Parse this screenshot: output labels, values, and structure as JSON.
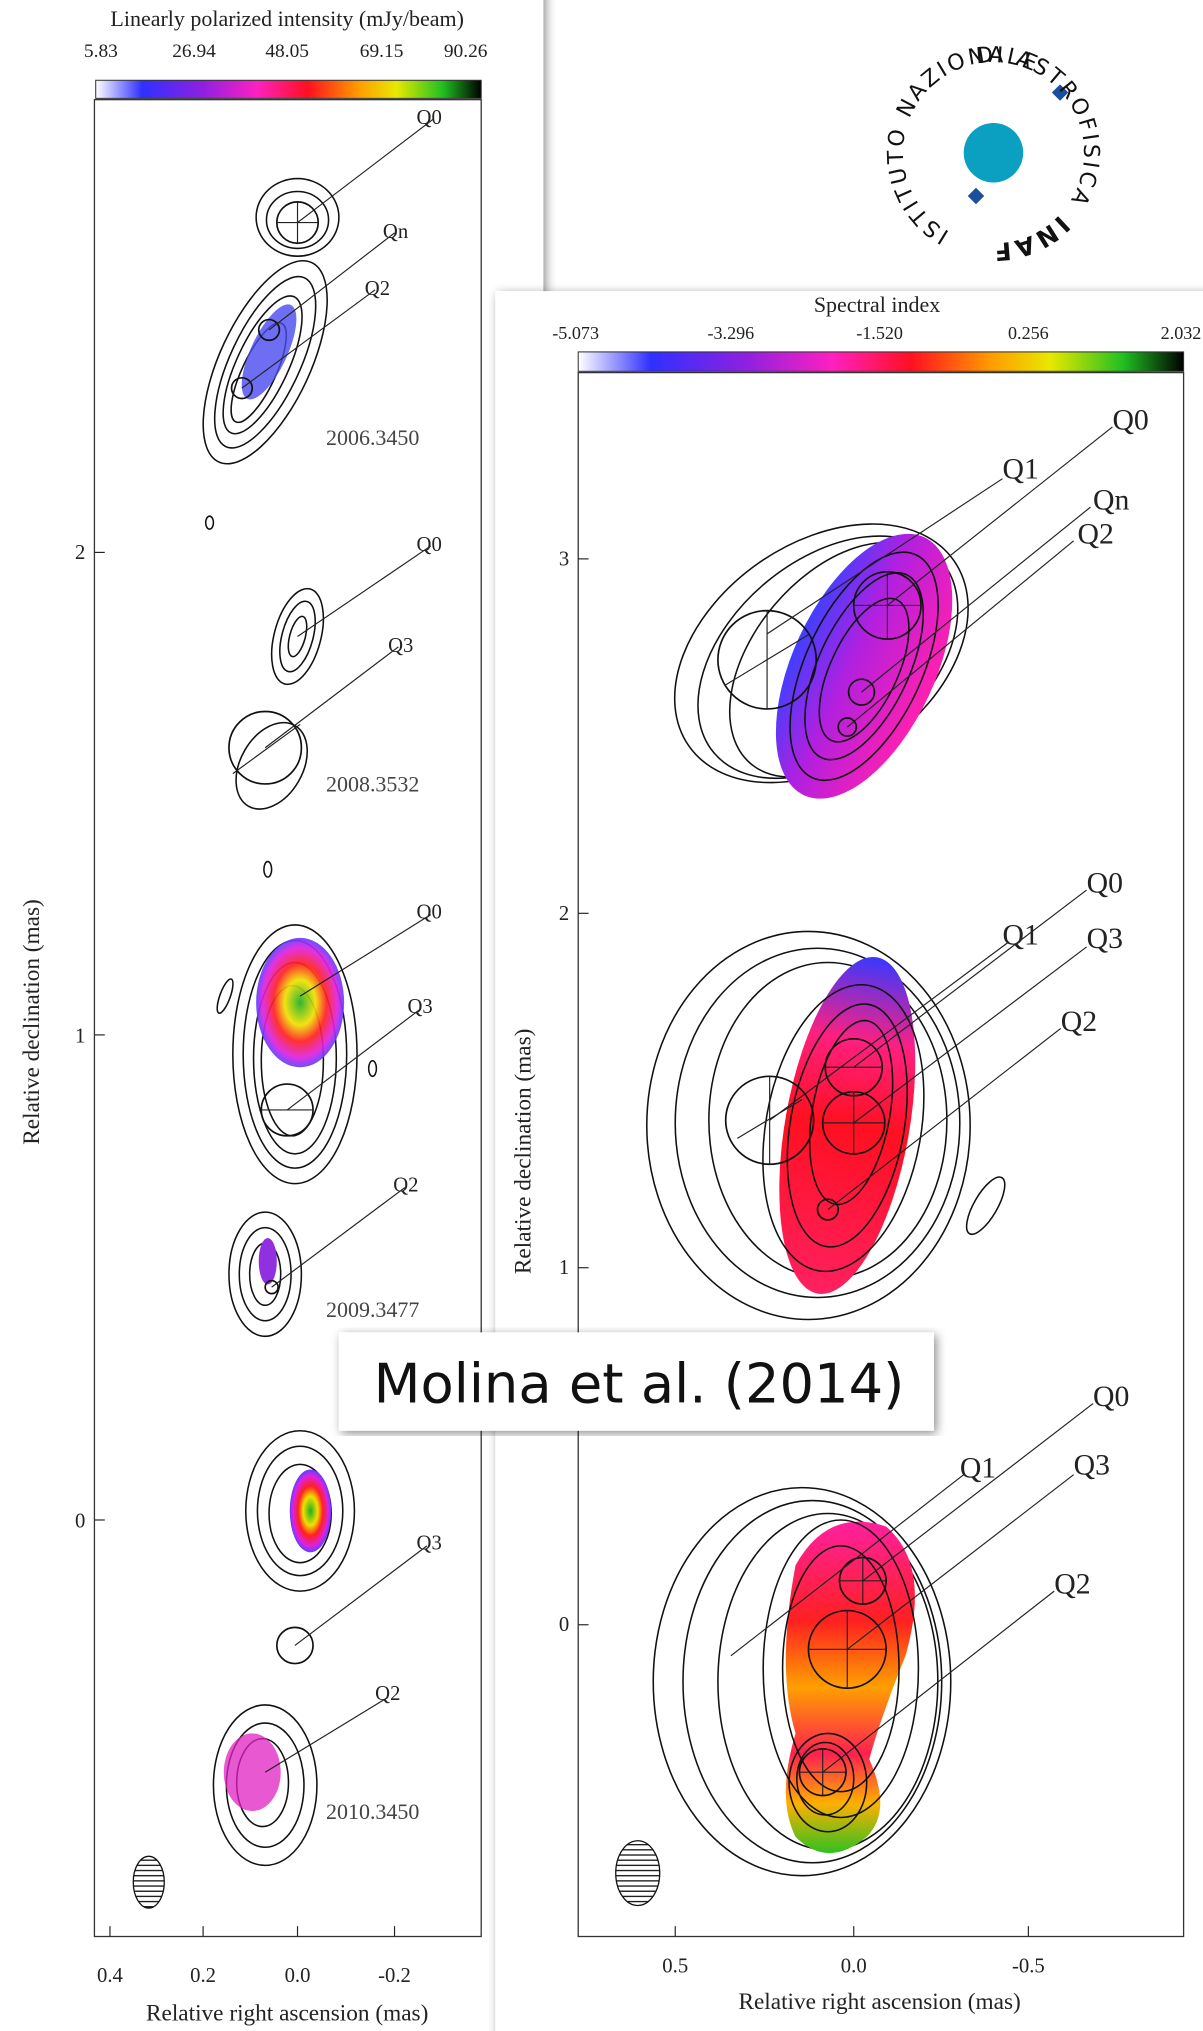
{
  "left_panel": {
    "colorbar_title": "Linearly polarized intensity (mJy/beam)",
    "colorbar_ticks": [
      "5.83",
      "26.94",
      "48.05",
      "69.15",
      "90.26"
    ],
    "y_ticks": [
      "2",
      "1",
      "0"
    ],
    "x_ticks": [
      "0.4",
      "0.2",
      "0.0",
      "-0.2"
    ],
    "y_label": "Relative declination (mas)",
    "x_label": "Relative right ascension (mas)",
    "epochs": [
      "2006.3450",
      "2008.3532",
      "2009.3477",
      "2010.3450"
    ],
    "components": [
      "Q0",
      "Qn",
      "Q2",
      "Q0",
      "Q3",
      "Q0",
      "Q3",
      "Q2",
      "Q3",
      "Q2"
    ]
  },
  "right_panel": {
    "colorbar_title": "Spectral index",
    "colorbar_ticks": [
      "-5.073",
      "-3.296",
      "-1.520",
      "0.256",
      "2.032"
    ],
    "y_ticks": [
      "3",
      "2",
      "1",
      "0"
    ],
    "x_ticks": [
      "0.5",
      "0.0",
      "-0.5"
    ],
    "y_label": "Relative declination (mas)",
    "x_label": "Relative right ascension (mas)",
    "components": [
      "Q0",
      "Q1",
      "Qn",
      "Q2",
      "Q0",
      "Q1",
      "Q3",
      "Q2",
      "Q0",
      "Q1",
      "Q3",
      "Q2"
    ]
  },
  "logo": {
    "ring_text": "DI ASTROFISICA",
    "acronym": "INAF",
    "ring_text_2": "ISTITUTO NAZIONALE"
  },
  "caption": "Molina et al. (2014)"
}
